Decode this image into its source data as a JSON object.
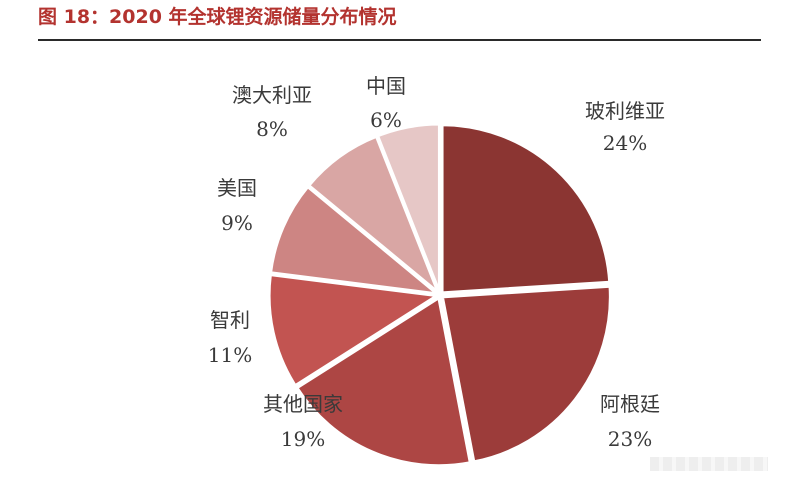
{
  "figure": {
    "title": "图 18：2020 年全球锂资源储量分布情况"
  },
  "chart_data": {
    "type": "pie",
    "title": "2020 年全球锂资源储量分布情况",
    "unit": "%",
    "slices": [
      {
        "label": "玻利维亚",
        "value": 24,
        "value_text": "24%",
        "color": "#8b3532"
      },
      {
        "label": "阿根廷",
        "value": 23,
        "value_text": "23%",
        "color": "#9c3c3a"
      },
      {
        "label": "其他国家",
        "value": 19,
        "value_text": "19%",
        "color": "#ad4644"
      },
      {
        "label": "智利",
        "value": 11,
        "value_text": "11%",
        "color": "#c25451"
      },
      {
        "label": "美国",
        "value": 9,
        "value_text": "9%",
        "color": "#cd8583"
      },
      {
        "label": "澳大利亚",
        "value": 8,
        "value_text": "8%",
        "color": "#d9a6a4"
      },
      {
        "label": "中国",
        "value": 6,
        "value_text": "6%",
        "color": "#e6c7c6"
      }
    ]
  }
}
